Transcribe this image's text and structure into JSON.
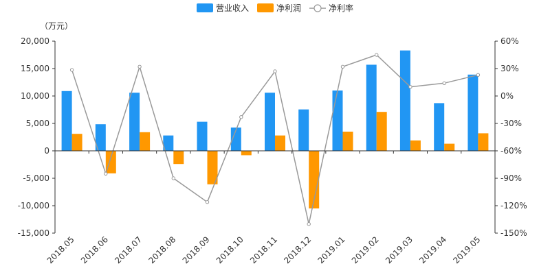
{
  "chart_data": {
    "type": "bar",
    "unit_label": "（万元）",
    "categories": [
      "2018.05",
      "2018.06",
      "2018.07",
      "2018.08",
      "2018.09",
      "2018.10",
      "2018.11",
      "2018.12",
      "2019.01",
      "2019.02",
      "2019.03",
      "2019.04",
      "2019.05"
    ],
    "series": [
      {
        "name": "营业收入",
        "type": "bar",
        "axis": "left",
        "color": "#2196F3",
        "values": [
          10900,
          4850,
          10600,
          2800,
          5300,
          4250,
          10600,
          7550,
          11000,
          15700,
          18300,
          8700,
          13900
        ]
      },
      {
        "name": "净利润",
        "type": "bar",
        "axis": "left",
        "color": "#FF9800",
        "values": [
          3100,
          -4100,
          3400,
          -2400,
          -6100,
          -800,
          2800,
          -10500,
          3500,
          7100,
          1900,
          1300,
          3200
        ]
      },
      {
        "name": "净利率",
        "type": "line",
        "axis": "right",
        "color": "#999999",
        "values": [
          28.5,
          -85,
          32,
          -90,
          -116,
          -23,
          27,
          -140,
          32,
          45,
          10,
          14,
          23
        ]
      }
    ],
    "y_left": {
      "min": -15000,
      "max": 20000,
      "ticks": [
        20000,
        15000,
        10000,
        5000,
        0,
        -5000,
        -10000,
        -15000
      ],
      "tick_labels": [
        "20,000",
        "15,000",
        "10,000",
        "5,000",
        "0",
        "-5,000",
        "-10,000",
        "-15,000"
      ]
    },
    "y_right": {
      "min": -150,
      "max": 60,
      "ticks": [
        60,
        30,
        0,
        -30,
        -60,
        -90,
        -120,
        -150
      ],
      "tick_labels": [
        "60%",
        "30%",
        "0%",
        "-30%",
        "-60%",
        "-90%",
        "-120%",
        "-150%"
      ]
    },
    "legend_position": "top-center",
    "grid": false
  }
}
